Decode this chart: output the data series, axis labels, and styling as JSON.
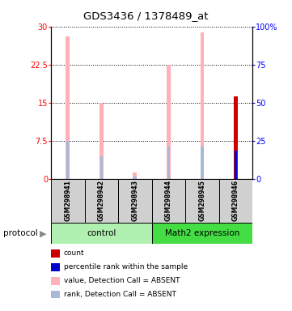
{
  "title": "GDS3436 / 1378489_at",
  "samples": [
    "GSM298941",
    "GSM298942",
    "GSM298943",
    "GSM298944",
    "GSM298945",
    "GSM298946"
  ],
  "value_absent": [
    28.0,
    15.0,
    1.2,
    22.5,
    28.8,
    0.0
  ],
  "rank_absent": [
    7.5,
    4.5,
    0.5,
    6.3,
    6.3,
    0.0
  ],
  "count_present": [
    0.0,
    0.0,
    0.0,
    0.0,
    0.0,
    16.3
  ],
  "percentile_present": [
    0.0,
    0.0,
    0.0,
    0.0,
    0.0,
    5.5
  ],
  "ylim": [
    0,
    30
  ],
  "yticks": [
    0,
    7.5,
    15,
    22.5,
    30
  ],
  "ytick_labels_left": [
    "0",
    "7.5",
    "15",
    "22.5",
    "30"
  ],
  "ytick_labels_right": [
    "0",
    "25",
    "50",
    "75",
    "100%"
  ],
  "group_control_color": "#b0f0b0",
  "group_math2_color": "#44dd44",
  "color_value_absent": "#ffb0b8",
  "color_rank_absent": "#aab8d8",
  "color_count_present": "#cc0000",
  "color_percentile_present": "#0000cc",
  "bg_color_sample": "#d0d0d0",
  "protocol_label": "protocol",
  "legend_items": [
    {
      "color": "#cc0000",
      "label": "count"
    },
    {
      "color": "#0000cc",
      "label": "percentile rank within the sample"
    },
    {
      "color": "#ffb0b8",
      "label": "value, Detection Call = ABSENT"
    },
    {
      "color": "#aab8d8",
      "label": "rank, Detection Call = ABSENT"
    }
  ]
}
